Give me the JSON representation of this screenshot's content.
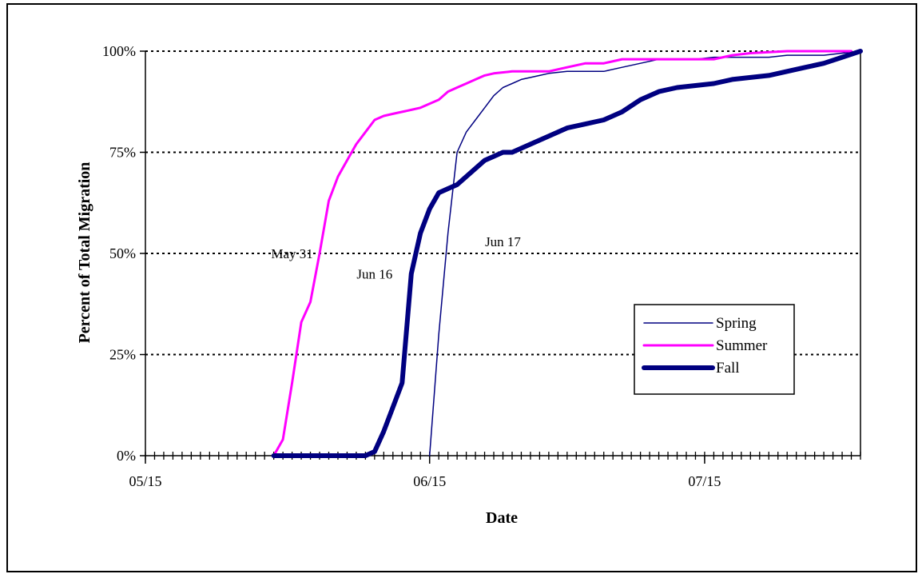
{
  "chart_data": {
    "type": "line",
    "title": "",
    "xlabel": "Date",
    "ylabel": "Percent of Total Migration",
    "x_unit": "date",
    "xlim": [
      "2000-05-15",
      "2000-08-01"
    ],
    "ylim": [
      0,
      100
    ],
    "x_tick_labels": [
      "05/15",
      "06/15",
      "07/15"
    ],
    "x_tick_values": [
      "2000-05-15",
      "2000-06-15",
      "2000-07-15"
    ],
    "y_tick_labels": [
      "0%",
      "25%",
      "50%",
      "75%",
      "100%"
    ],
    "y_tick_values": [
      0,
      25,
      50,
      75,
      100
    ],
    "grid": "horizontal dotted",
    "legend_position": "lower-right",
    "annotations": [
      {
        "text": "May 31",
        "x": "2000-05-31",
        "y": 50
      },
      {
        "text": "Jun 16",
        "x": "2000-06-09",
        "y": 45
      },
      {
        "text": "Jun 17",
        "x": "2000-06-23",
        "y": 53
      }
    ],
    "series": [
      {
        "name": "Spring",
        "color": "#000080",
        "style": "thin",
        "x": [
          "2000-06-15",
          "2000-06-16",
          "2000-06-17",
          "2000-06-18",
          "2000-06-19",
          "2000-06-20",
          "2000-06-21",
          "2000-06-22",
          "2000-06-23",
          "2000-06-24",
          "2000-06-25",
          "2000-06-26",
          "2000-06-27",
          "2000-06-28",
          "2000-06-30",
          "2000-07-02",
          "2000-07-04",
          "2000-07-06",
          "2000-07-08",
          "2000-07-10",
          "2000-07-12",
          "2000-07-14",
          "2000-07-16",
          "2000-07-18",
          "2000-07-20",
          "2000-07-22",
          "2000-07-24",
          "2000-07-26",
          "2000-07-28",
          "2000-07-30",
          "2000-08-01"
        ],
        "y": [
          0,
          30,
          55,
          75,
          80,
          83,
          86,
          89,
          91,
          92,
          93,
          93.5,
          94,
          94.5,
          95,
          95,
          95,
          96,
          97,
          98,
          98,
          98,
          98.5,
          98.5,
          98.5,
          98.5,
          99,
          99,
          99,
          99.5,
          100
        ]
      },
      {
        "name": "Summer",
        "color": "#ff00ff",
        "style": "medium",
        "x": [
          "2000-05-29",
          "2000-05-30",
          "2000-05-31",
          "2000-06-01",
          "2000-06-02",
          "2000-06-03",
          "2000-06-04",
          "2000-06-05",
          "2000-06-06",
          "2000-06-07",
          "2000-06-08",
          "2000-06-09",
          "2000-06-10",
          "2000-06-11",
          "2000-06-12",
          "2000-06-13",
          "2000-06-14",
          "2000-06-15",
          "2000-06-16",
          "2000-06-17",
          "2000-06-18",
          "2000-06-19",
          "2000-06-20",
          "2000-06-21",
          "2000-06-22",
          "2000-06-24",
          "2000-06-26",
          "2000-06-28",
          "2000-06-30",
          "2000-07-02",
          "2000-07-04",
          "2000-07-06",
          "2000-07-08",
          "2000-07-12",
          "2000-07-16",
          "2000-07-18",
          "2000-07-20",
          "2000-07-24",
          "2000-07-28",
          "2000-07-31"
        ],
        "y": [
          0,
          4,
          18,
          33,
          38,
          50,
          63,
          69,
          73,
          77,
          80,
          83,
          84,
          84.5,
          85,
          85.5,
          86,
          87,
          88,
          90,
          91,
          92,
          93,
          94,
          94.5,
          95,
          95,
          95,
          96,
          97,
          97,
          98,
          98,
          98,
          98,
          99,
          99.5,
          100,
          100,
          100
        ]
      },
      {
        "name": "Fall",
        "color": "#000080",
        "style": "thick",
        "x": [
          "2000-05-29",
          "2000-06-08",
          "2000-06-09",
          "2000-06-10",
          "2000-06-11",
          "2000-06-12",
          "2000-06-13",
          "2000-06-14",
          "2000-06-15",
          "2000-06-16",
          "2000-06-17",
          "2000-06-18",
          "2000-06-19",
          "2000-06-20",
          "2000-06-21",
          "2000-06-22",
          "2000-06-23",
          "2000-06-24",
          "2000-06-26",
          "2000-06-28",
          "2000-06-30",
          "2000-07-02",
          "2000-07-04",
          "2000-07-06",
          "2000-07-08",
          "2000-07-10",
          "2000-07-12",
          "2000-07-14",
          "2000-07-16",
          "2000-07-18",
          "2000-07-20",
          "2000-07-22",
          "2000-07-24",
          "2000-07-26",
          "2000-07-28",
          "2000-07-30",
          "2000-08-01"
        ],
        "y": [
          0,
          0,
          1,
          6,
          12,
          18,
          45,
          55,
          61,
          65,
          66,
          67,
          69,
          71,
          73,
          74,
          75,
          75,
          77,
          79,
          81,
          82,
          83,
          85,
          88,
          90,
          91,
          91.5,
          92,
          93,
          93.5,
          94,
          95,
          96,
          97,
          98.5,
          100
        ]
      }
    ]
  }
}
